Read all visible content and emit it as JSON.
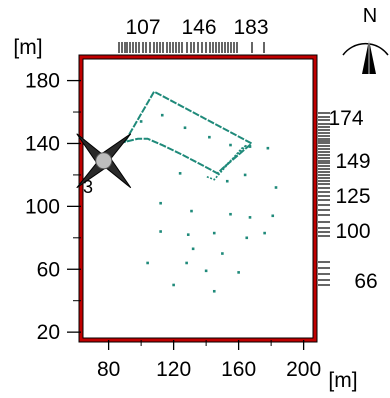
{
  "units": {
    "left": "[m]",
    "bottom": "[m]"
  },
  "north_label": "N",
  "source_label": "3",
  "colors": {
    "frame": "#c00000",
    "frame_outline": "#000000",
    "building": "#1f8a7a",
    "receptor": "#1f8a7a",
    "rose": "#2a2a2a"
  },
  "chart_data": {
    "type": "scatter",
    "xlim": [
      63,
      207
    ],
    "ylim": [
      15,
      195
    ],
    "x_ticks": [
      80,
      120,
      160,
      200
    ],
    "y_ticks": [
      20,
      60,
      100,
      140,
      180
    ],
    "top_ticks": [
      "107",
      "146",
      "183"
    ],
    "right_ticks": [
      "174",
      "149",
      "125",
      "100",
      "66"
    ],
    "building": [
      [
        90,
        141
      ],
      [
        108,
        173
      ],
      [
        168,
        140
      ],
      [
        150,
        124
      ],
      [
        147,
        121
      ],
      [
        138,
        126
      ],
      [
        125,
        133
      ],
      [
        113,
        139
      ],
      [
        104,
        143
      ],
      [
        98,
        143
      ]
    ],
    "inner_wing": [
      [
        150,
        124
      ],
      [
        165,
        139
      ],
      [
        162,
        137
      ],
      [
        145,
        117
      ],
      [
        140,
        119
      ]
    ],
    "receptors": [
      [
        100,
        154
      ],
      [
        113,
        158
      ],
      [
        127,
        150
      ],
      [
        142,
        144
      ],
      [
        155,
        139
      ],
      [
        167,
        138
      ],
      [
        178,
        137
      ],
      [
        124,
        121
      ],
      [
        153,
        116
      ],
      [
        164,
        120
      ],
      [
        183,
        112
      ],
      [
        112,
        102
      ],
      [
        131,
        97
      ],
      [
        155,
        95
      ],
      [
        167,
        93
      ],
      [
        181,
        94
      ],
      [
        112,
        84
      ],
      [
        129,
        82
      ],
      [
        145,
        83
      ],
      [
        165,
        80
      ],
      [
        176,
        83
      ],
      [
        104,
        64
      ],
      [
        128,
        64
      ],
      [
        140,
        59
      ],
      [
        160,
        58
      ],
      [
        120,
        50
      ],
      [
        145,
        46
      ],
      [
        132,
        73
      ],
      [
        150,
        70
      ]
    ],
    "source": [
      77,
      129
    ]
  }
}
